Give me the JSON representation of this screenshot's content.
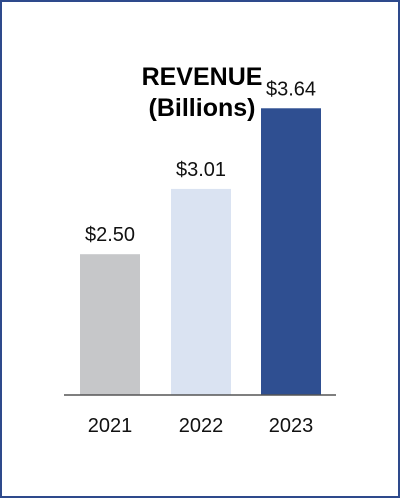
{
  "chart_data": {
    "type": "bar",
    "title": "REVENUE",
    "subtitle": "(Billions)",
    "categories": [
      "2021",
      "2022",
      "2023"
    ],
    "values": [
      2.5,
      3.01,
      3.64
    ],
    "data_labels": [
      "$2.50",
      "$3.01",
      "$3.64"
    ],
    "colors": [
      "#c6c7c9",
      "#dae3f2",
      "#2f4f91"
    ],
    "ylim": [
      1.4,
      3.9
    ],
    "grid": false,
    "legend": "none"
  },
  "colors": {
    "border": "#2e4a8c",
    "axis": "#555555"
  }
}
